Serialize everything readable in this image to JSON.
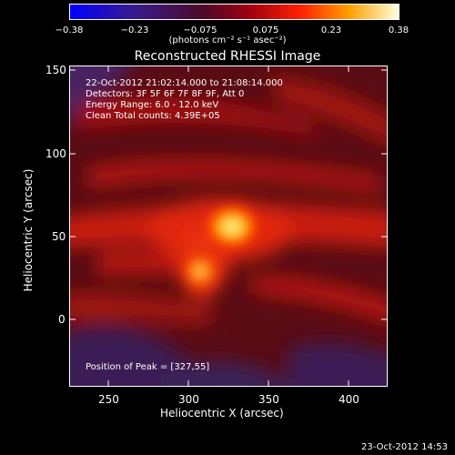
{
  "colorbar": {
    "ticks": [
      "−0.38",
      "−0.23",
      "−0.075",
      "0.075",
      "0.23",
      "0.38"
    ],
    "units": "(photons cm⁻² s⁻¹ asec⁻²)"
  },
  "title": "Reconstructed RHESSI Image",
  "info": {
    "line1": "22-Oct-2012 21:02:14.000 to 21:08:14.000",
    "line2": "Detectors: 3F 5F 6F 7F 8F 9F, Att 0",
    "line3": "Energy Range: 6.0 - 12.0 keV",
    "line4": "Clean     Total counts: 4.39E+05"
  },
  "peak": "Position of Peak = [327,55]",
  "axes": {
    "xlabel": "Heliocentric X (arcsec)",
    "ylabel": "Heliocentric Y (arcsec)",
    "xticks": [
      "250",
      "300",
      "350",
      "400"
    ],
    "yticks": [
      "150",
      "100",
      "50",
      "0"
    ]
  },
  "footer_date": "23-Oct-2012 14:53"
}
